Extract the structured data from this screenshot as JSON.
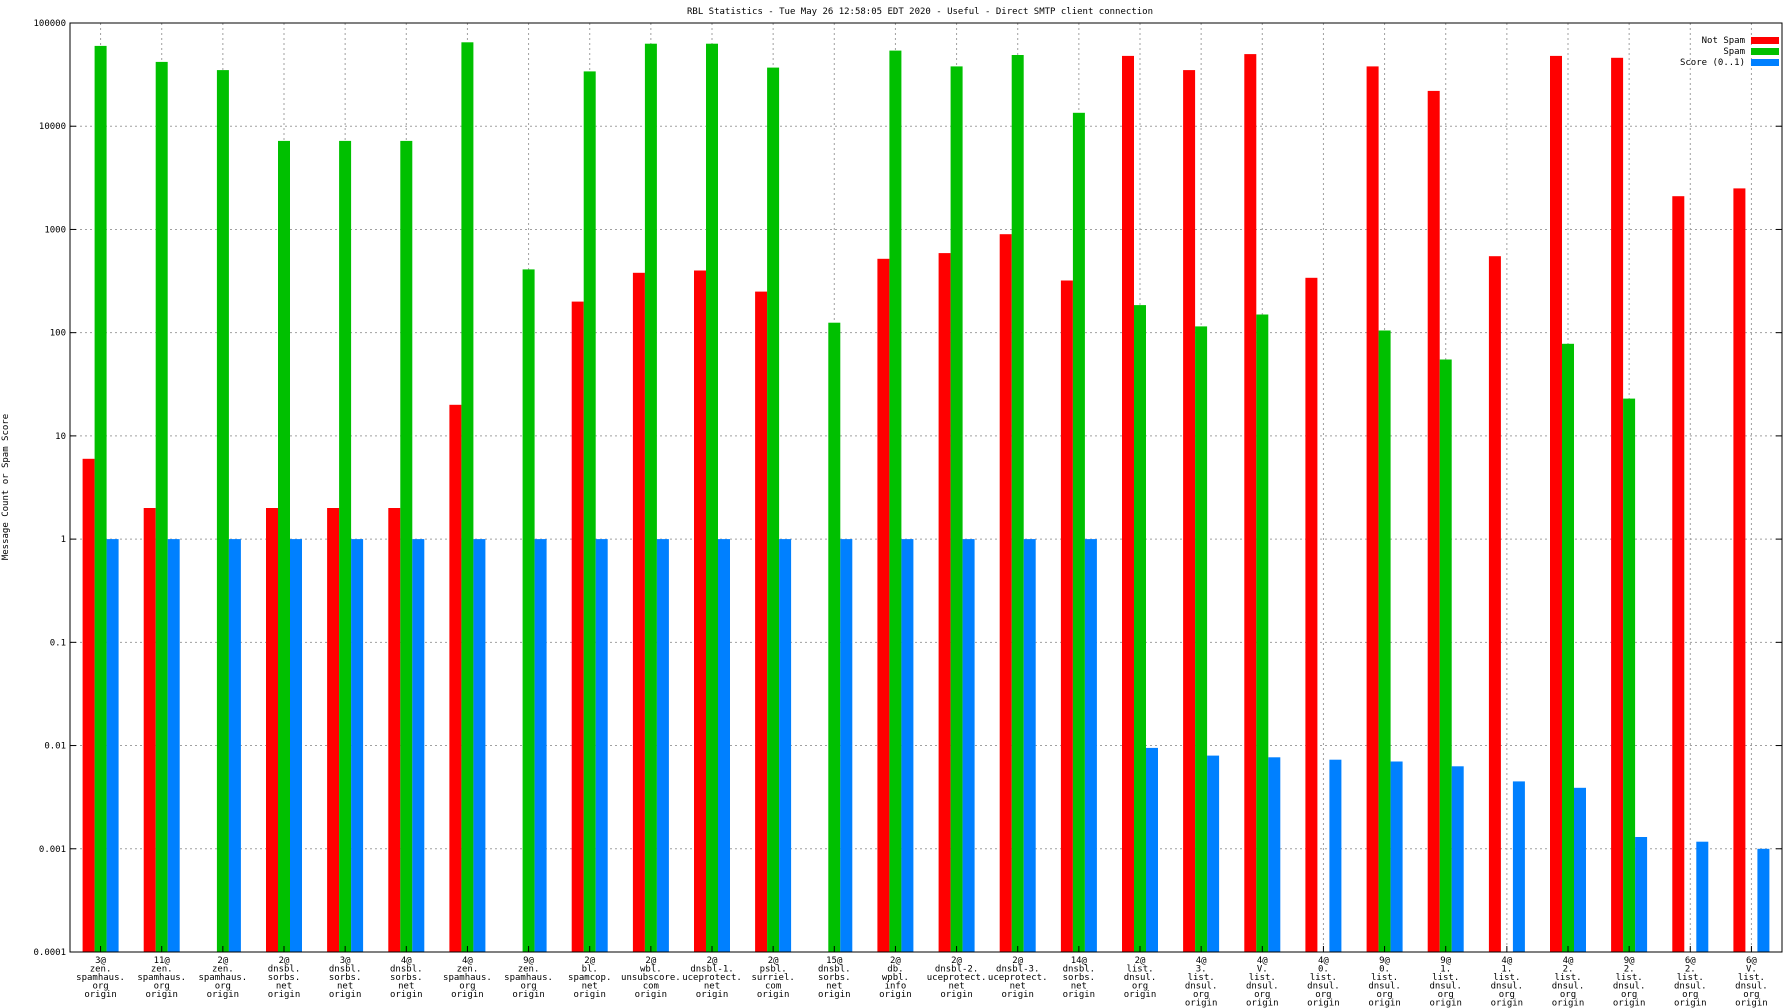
{
  "chart_data": {
    "type": "bar",
    "title": "RBL Statistics - Tue May 26 12:58:05 EDT 2020 - Useful - Direct SMTP client connection",
    "xlabel": "",
    "ylabel": "Message Count or Spam Score",
    "yscale": "log",
    "ylim": [
      0.0001,
      100000
    ],
    "yticks": [
      "100000",
      "10000",
      "1000",
      "100",
      "10",
      "1",
      "0.1",
      "0.01",
      "0.001",
      "0.0001"
    ],
    "grid": true,
    "legend_position": "top-right",
    "categories": [
      [
        "3@",
        "zen.",
        "spamhaus.",
        "org",
        "origin"
      ],
      [
        "11@",
        "zen.",
        "spamhaus.",
        "org",
        "origin"
      ],
      [
        "2@",
        "zen.",
        "spamhaus.",
        "org",
        "origin"
      ],
      [
        "2@",
        "dnsbl.",
        "sorbs.",
        "net",
        "origin"
      ],
      [
        "3@",
        "dnsbl.",
        "sorbs.",
        "net",
        "origin"
      ],
      [
        "4@",
        "dnsbl.",
        "sorbs.",
        "net",
        "origin"
      ],
      [
        "4@",
        "zen.",
        "spamhaus.",
        "org",
        "origin"
      ],
      [
        "9@",
        "zen.",
        "spamhaus.",
        "org",
        "origin"
      ],
      [
        "2@",
        "bl.",
        "spamcop.",
        "net",
        "origin"
      ],
      [
        "2@",
        "wbl.",
        "unsubscore.",
        "com",
        "origin"
      ],
      [
        "2@",
        "dnsbl-1.",
        "uceprotect.",
        "net",
        "origin"
      ],
      [
        "2@",
        "psbl.",
        "surriel.",
        "com",
        "origin"
      ],
      [
        "15@",
        "dnsbl.",
        "sorbs.",
        "net",
        "origin"
      ],
      [
        "2@",
        "db.",
        "wpbl.",
        "info",
        "origin"
      ],
      [
        "2@",
        "dnsbl-2.",
        "uceprotect.",
        "net",
        "origin"
      ],
      [
        "2@",
        "dnsbl-3.",
        "uceprotect.",
        "net",
        "origin"
      ],
      [
        "14@",
        "dnsbl.",
        "sorbs.",
        "net",
        "origin"
      ],
      [
        "2@",
        "list.",
        "dnsul.",
        "org",
        "origin"
      ],
      [
        "4@",
        "3.",
        "list.",
        "dnsul.",
        "org",
        "origin"
      ],
      [
        "4@",
        "V.",
        "list.",
        "dnsul.",
        "org",
        "origin"
      ],
      [
        "4@",
        "0.",
        "list.",
        "dnsul.",
        "org",
        "origin"
      ],
      [
        "9@",
        "0.",
        "list.",
        "dnsul.",
        "org",
        "origin"
      ],
      [
        "9@",
        "1.",
        "list.",
        "dnsul.",
        "org",
        "origin"
      ],
      [
        "4@",
        "1.",
        "list.",
        "dnsul.",
        "org",
        "origin"
      ],
      [
        "4@",
        "2.",
        "list.",
        "dnsul.",
        "org",
        "origin"
      ],
      [
        "9@",
        "2.",
        "list.",
        "dnsul.",
        "org",
        "origin"
      ],
      [
        "6@",
        "2.",
        "list.",
        "dnsul.",
        "org",
        "origin"
      ],
      [
        "6@",
        "V.",
        "list.",
        "dnsul.",
        "org",
        "origin"
      ]
    ],
    "series": [
      {
        "name": "Not Spam",
        "color": "#ff0000",
        "values": [
          6,
          2,
          null,
          2,
          2,
          2,
          20,
          null,
          200,
          380,
          400,
          250,
          null,
          520,
          590,
          900,
          320,
          48000,
          35000,
          50000,
          340,
          38000,
          22000,
          550,
          48000,
          46000,
          2100,
          2500
        ]
      },
      {
        "name": "Spam",
        "color": "#00c000",
        "values": [
          60000,
          42000,
          35000,
          7200,
          7200,
          7200,
          65000,
          410,
          34000,
          63000,
          63000,
          37000,
          125,
          54000,
          38000,
          49000,
          13500,
          185,
          115,
          150,
          null,
          105,
          55,
          null,
          78,
          23,
          null,
          null
        ]
      },
      {
        "name": "Score (0..1)",
        "color": "#0080ff",
        "values": [
          1,
          1,
          1,
          1,
          1,
          1,
          1,
          1,
          1,
          1,
          1,
          1,
          1,
          1,
          1,
          1,
          1,
          0.0095,
          0.008,
          0.0077,
          0.0073,
          0.007,
          0.0063,
          0.0045,
          0.0039,
          0.0013,
          0.00117,
          0.001
        ]
      }
    ]
  }
}
